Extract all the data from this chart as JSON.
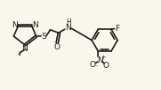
{
  "bg_color": "#faf8ed",
  "line_color": "#1a1a1a",
  "line_width": 1.2,
  "font_size": 6.5,
  "figsize": [
    1.81,
    1.02
  ],
  "dpi": 100,
  "xlim": [
    0,
    10.0
  ],
  "ylim": [
    0,
    5.6
  ]
}
